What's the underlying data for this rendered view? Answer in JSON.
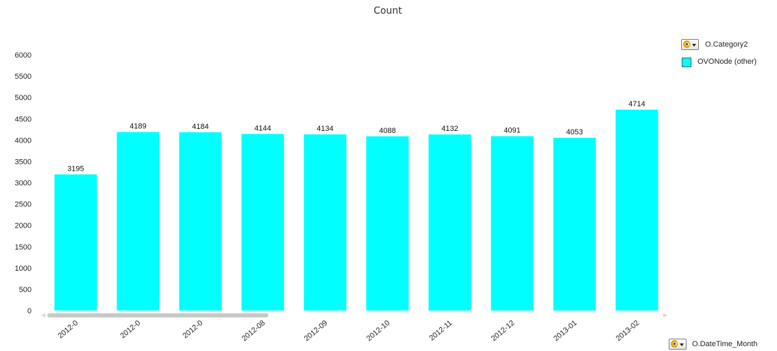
{
  "chart_data": {
    "type": "bar",
    "title": "Count",
    "categories": [
      "2012-0",
      "2012-0",
      "2012-0",
      "2012-08",
      "2012-09",
      "2012-10",
      "2012-11",
      "2012-12",
      "2013-01",
      "2013-02"
    ],
    "series": [
      {
        "name": "OVONode (other)",
        "values": [
          3195,
          4189,
          4184,
          4144,
          4134,
          4088,
          4132,
          4091,
          4053,
          4714
        ],
        "color": "#00ffff"
      }
    ],
    "y_ticks": [
      "0",
      "500",
      "1000",
      "1500",
      "2000",
      "2500",
      "3000",
      "3500",
      "4000",
      "4500",
      "5000",
      "5500",
      "6000"
    ],
    "ylim": [
      0,
      6000
    ],
    "grid": false,
    "legend_position": "top-right",
    "xlabel": "",
    "ylabel": ""
  },
  "legend": {
    "dimension_label": "O.Category2",
    "series_label": "OVONode (other)"
  },
  "x_dimension_label": "O.DateTime_Month",
  "colors": {
    "bar": "#00ffff",
    "scrollbar": "#c8c8c8"
  },
  "icons": {
    "cycle_group": "cycle-group-icon",
    "dropdown": "chevron-down-icon"
  },
  "scroll": {
    "visible_fraction": 0.36
  }
}
